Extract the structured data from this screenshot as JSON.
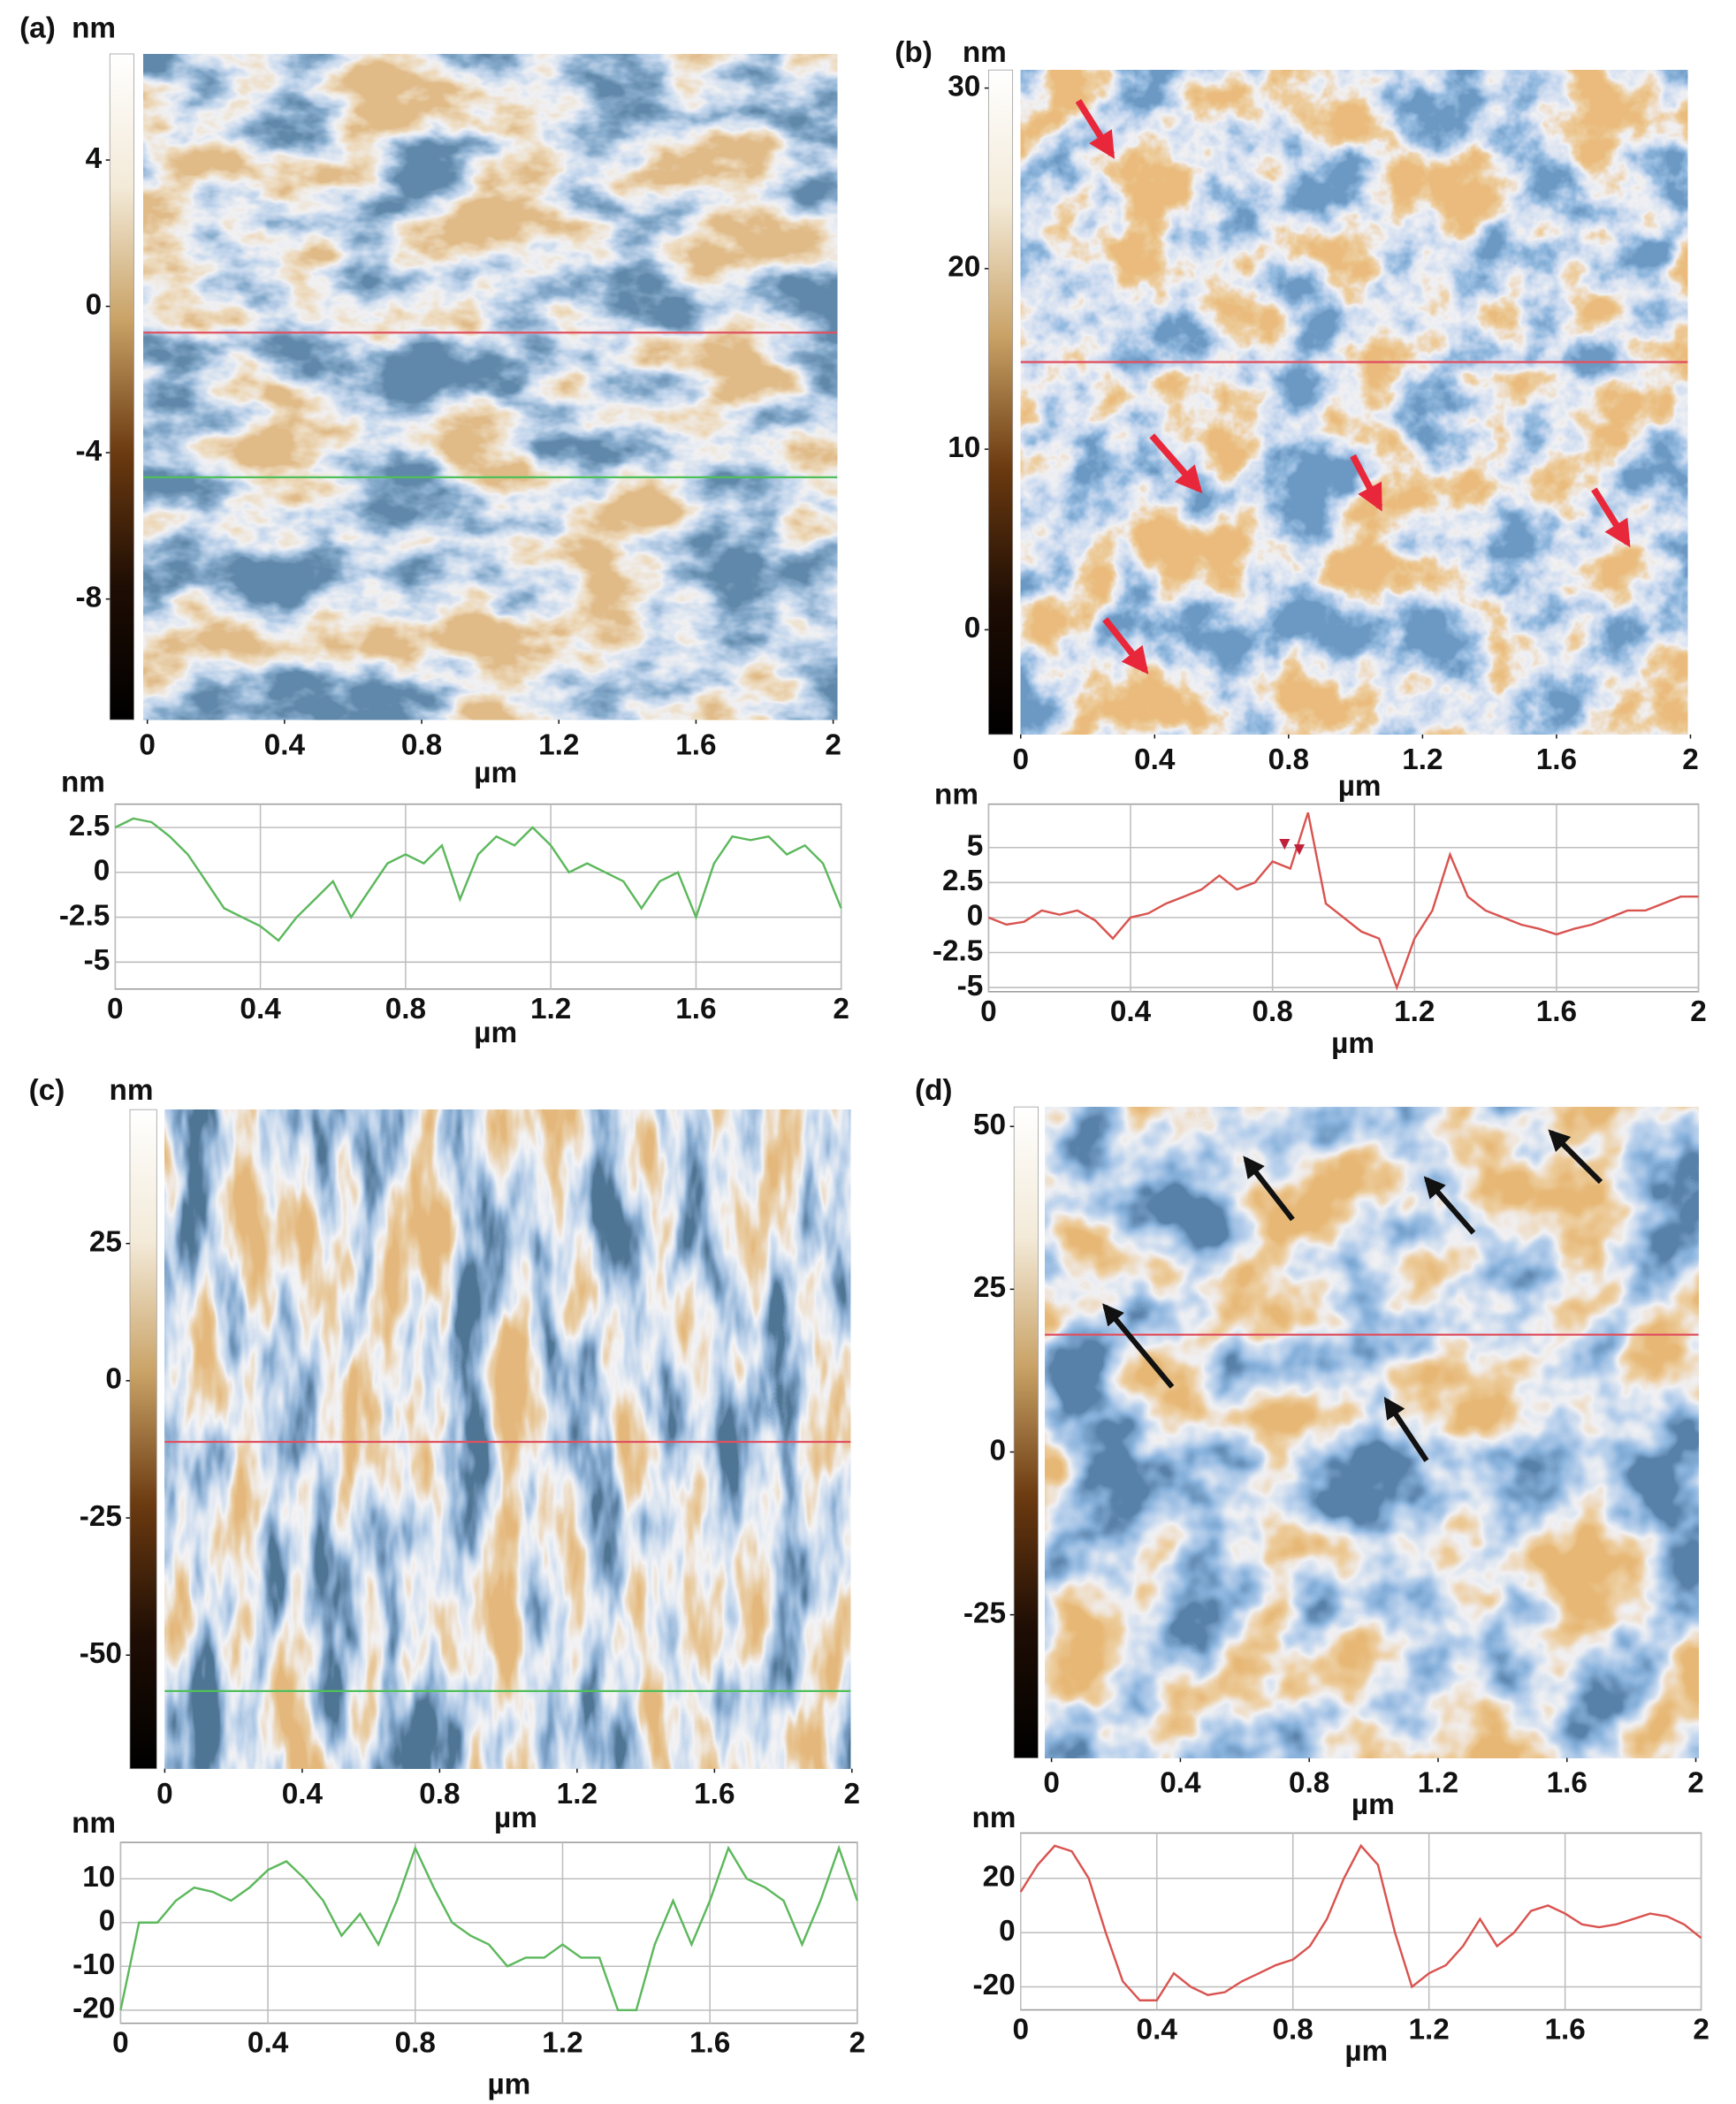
{
  "chart_data": [
    {
      "type": "heatmap",
      "panel": "(a)",
      "clabel": "nm",
      "clim": [
        -11.3,
        6.9
      ],
      "cticks": [
        4,
        0,
        -4,
        -8
      ],
      "xlabel": "µm",
      "xlim": [
        0,
        2
      ],
      "xticks": [
        0,
        0.4,
        0.8,
        1.2,
        1.6,
        2
      ]
    },
    {
      "type": "line",
      "ylabel": "nm",
      "xlabel": "µm",
      "color": "#5cb85c",
      "grid": true,
      "x": [
        0,
        0.05,
        0.1,
        0.15,
        0.2,
        0.25,
        0.3,
        0.35,
        0.4,
        0.45,
        0.5,
        0.55,
        0.6,
        0.65,
        0.7,
        0.75,
        0.8,
        0.85,
        0.9,
        0.95,
        1,
        1.05,
        1.1,
        1.15,
        1.2,
        1.25,
        1.3,
        1.35,
        1.4,
        1.45,
        1.5,
        1.55,
        1.6,
        1.65,
        1.7,
        1.75,
        1.8,
        1.85,
        1.9,
        1.95,
        2
      ],
      "values": [
        2.5,
        3,
        2.8,
        2,
        1,
        -0.5,
        -2,
        -2.5,
        -3,
        -3.8,
        -2.5,
        -1.5,
        -0.5,
        -2.5,
        -1,
        0.5,
        1,
        0.5,
        1.5,
        -1.5,
        1,
        2,
        1.5,
        2.5,
        1.5,
        0,
        0.5,
        0,
        -0.5,
        -2,
        -0.5,
        0,
        -2.5,
        0.5,
        2,
        1.8,
        2,
        1,
        1.5,
        0.5,
        -2
      ],
      "xlim": [
        0,
        2
      ],
      "xticks": [
        0,
        0.4,
        0.8,
        1.2,
        1.6,
        2
      ],
      "ylim": [
        -6.5,
        3.8
      ],
      "yticks": [
        2.5,
        0,
        -2.5,
        -5
      ]
    },
    {
      "type": "heatmap",
      "panel": "(b)",
      "clabel": "nm",
      "clim": [
        -5.8,
        31
      ],
      "cticks": [
        30,
        20,
        10,
        0
      ],
      "xlabel": "µm",
      "xlim": [
        0,
        2
      ],
      "xticks": [
        0,
        0.4,
        0.8,
        1.2,
        1.6,
        2
      ]
    },
    {
      "type": "line",
      "ylabel": "nm",
      "xlabel": "µm",
      "color": "#d9534f",
      "grid": true,
      "x": [
        0,
        0.05,
        0.1,
        0.15,
        0.2,
        0.25,
        0.3,
        0.35,
        0.4,
        0.45,
        0.5,
        0.55,
        0.6,
        0.65,
        0.7,
        0.75,
        0.8,
        0.85,
        0.9,
        0.95,
        1,
        1.05,
        1.1,
        1.15,
        1.2,
        1.25,
        1.3,
        1.35,
        1.4,
        1.45,
        1.5,
        1.55,
        1.6,
        1.65,
        1.7,
        1.75,
        1.8,
        1.85,
        1.9,
        1.95,
        2
      ],
      "values": [
        0,
        -0.5,
        -0.3,
        0.5,
        0.2,
        0.5,
        -0.2,
        -1.5,
        0,
        0.3,
        1,
        1.5,
        2,
        3,
        2,
        2.5,
        4,
        3.5,
        7.5,
        1,
        0,
        -1,
        -1.5,
        -5,
        -1.5,
        0.5,
        4.5,
        1.5,
        0.5,
        0,
        -0.5,
        -0.8,
        -1.2,
        -0.8,
        -0.5,
        0,
        0.5,
        0.5,
        1,
        1.5,
        1.5
      ],
      "xlim": [
        0,
        2
      ],
      "xticks": [
        0,
        0.4,
        0.8,
        1.2,
        1.6,
        2
      ],
      "ylim": [
        -5.3,
        8.1
      ],
      "yticks": [
        5,
        2.5,
        0,
        -2.5,
        -5
      ]
    },
    {
      "type": "heatmap",
      "panel": "(c)",
      "clabel": "nm",
      "clim": [
        -70.7,
        49.4
      ],
      "cticks": [
        25,
        0,
        -25,
        -50
      ],
      "xlabel": "µm",
      "xlim": [
        0,
        2
      ],
      "xticks": [
        0,
        0.4,
        0.8,
        1.2,
        1.6,
        2
      ]
    },
    {
      "type": "line",
      "ylabel": "nm",
      "xlabel": "µm",
      "color": "#5cb85c",
      "grid": true,
      "x": [
        0,
        0.05,
        0.1,
        0.15,
        0.2,
        0.25,
        0.3,
        0.35,
        0.4,
        0.45,
        0.5,
        0.55,
        0.6,
        0.65,
        0.7,
        0.75,
        0.8,
        0.85,
        0.9,
        0.95,
        1,
        1.05,
        1.1,
        1.15,
        1.2,
        1.25,
        1.3,
        1.35,
        1.4,
        1.45,
        1.5,
        1.55,
        1.6,
        1.65,
        1.7,
        1.75,
        1.8,
        1.85,
        1.9,
        1.95,
        2
      ],
      "values": [
        -20,
        0,
        0,
        5,
        8,
        7,
        5,
        8,
        12,
        14,
        10,
        5,
        -3,
        2,
        -5,
        5,
        17,
        8,
        0,
        -3,
        -5,
        -10,
        -8,
        -8,
        -5,
        -8,
        -8,
        -20,
        -20,
        -5,
        5,
        -5,
        5,
        17,
        10,
        8,
        5,
        -5,
        5,
        17,
        5
      ],
      "xlim": [
        0,
        2
      ],
      "xticks": [
        0,
        0.4,
        0.8,
        1.2,
        1.6,
        2
      ],
      "ylim": [
        -23,
        18.3
      ],
      "yticks": [
        10,
        0,
        -10,
        -20
      ]
    },
    {
      "type": "heatmap",
      "panel": "(d)",
      "clim": [
        -47,
        53
      ],
      "cticks": [
        50,
        25,
        0,
        -25
      ],
      "xlabel": "µm",
      "xlim": [
        0,
        2
      ],
      "xticks": [
        0,
        0.4,
        0.8,
        1.2,
        1.6,
        2
      ]
    },
    {
      "type": "line",
      "ylabel": "nm",
      "xlabel": "µm",
      "color": "#d9534f",
      "grid": true,
      "x": [
        0,
        0.05,
        0.1,
        0.15,
        0.2,
        0.25,
        0.3,
        0.35,
        0.4,
        0.45,
        0.5,
        0.55,
        0.6,
        0.65,
        0.7,
        0.75,
        0.8,
        0.85,
        0.9,
        0.95,
        1,
        1.05,
        1.1,
        1.15,
        1.2,
        1.25,
        1.3,
        1.35,
        1.4,
        1.45,
        1.5,
        1.55,
        1.6,
        1.65,
        1.7,
        1.75,
        1.8,
        1.85,
        1.9,
        1.95,
        2
      ],
      "values": [
        15,
        25,
        32,
        30,
        20,
        0,
        -18,
        -25,
        -25,
        -15,
        -20,
        -23,
        -22,
        -18,
        -15,
        -12,
        -10,
        -5,
        5,
        20,
        32,
        25,
        0,
        -20,
        -15,
        -12,
        -5,
        5,
        -5,
        0,
        8,
        10,
        7,
        3,
        2,
        3,
        5,
        7,
        6,
        3,
        -2
      ],
      "xlim": [
        0,
        2
      ],
      "xticks": [
        0,
        0.4,
        0.8,
        1.2,
        1.6,
        2
      ],
      "ylim": [
        -28.5,
        36.7
      ],
      "yticks": [
        20,
        0,
        -20
      ]
    }
  ]
}
